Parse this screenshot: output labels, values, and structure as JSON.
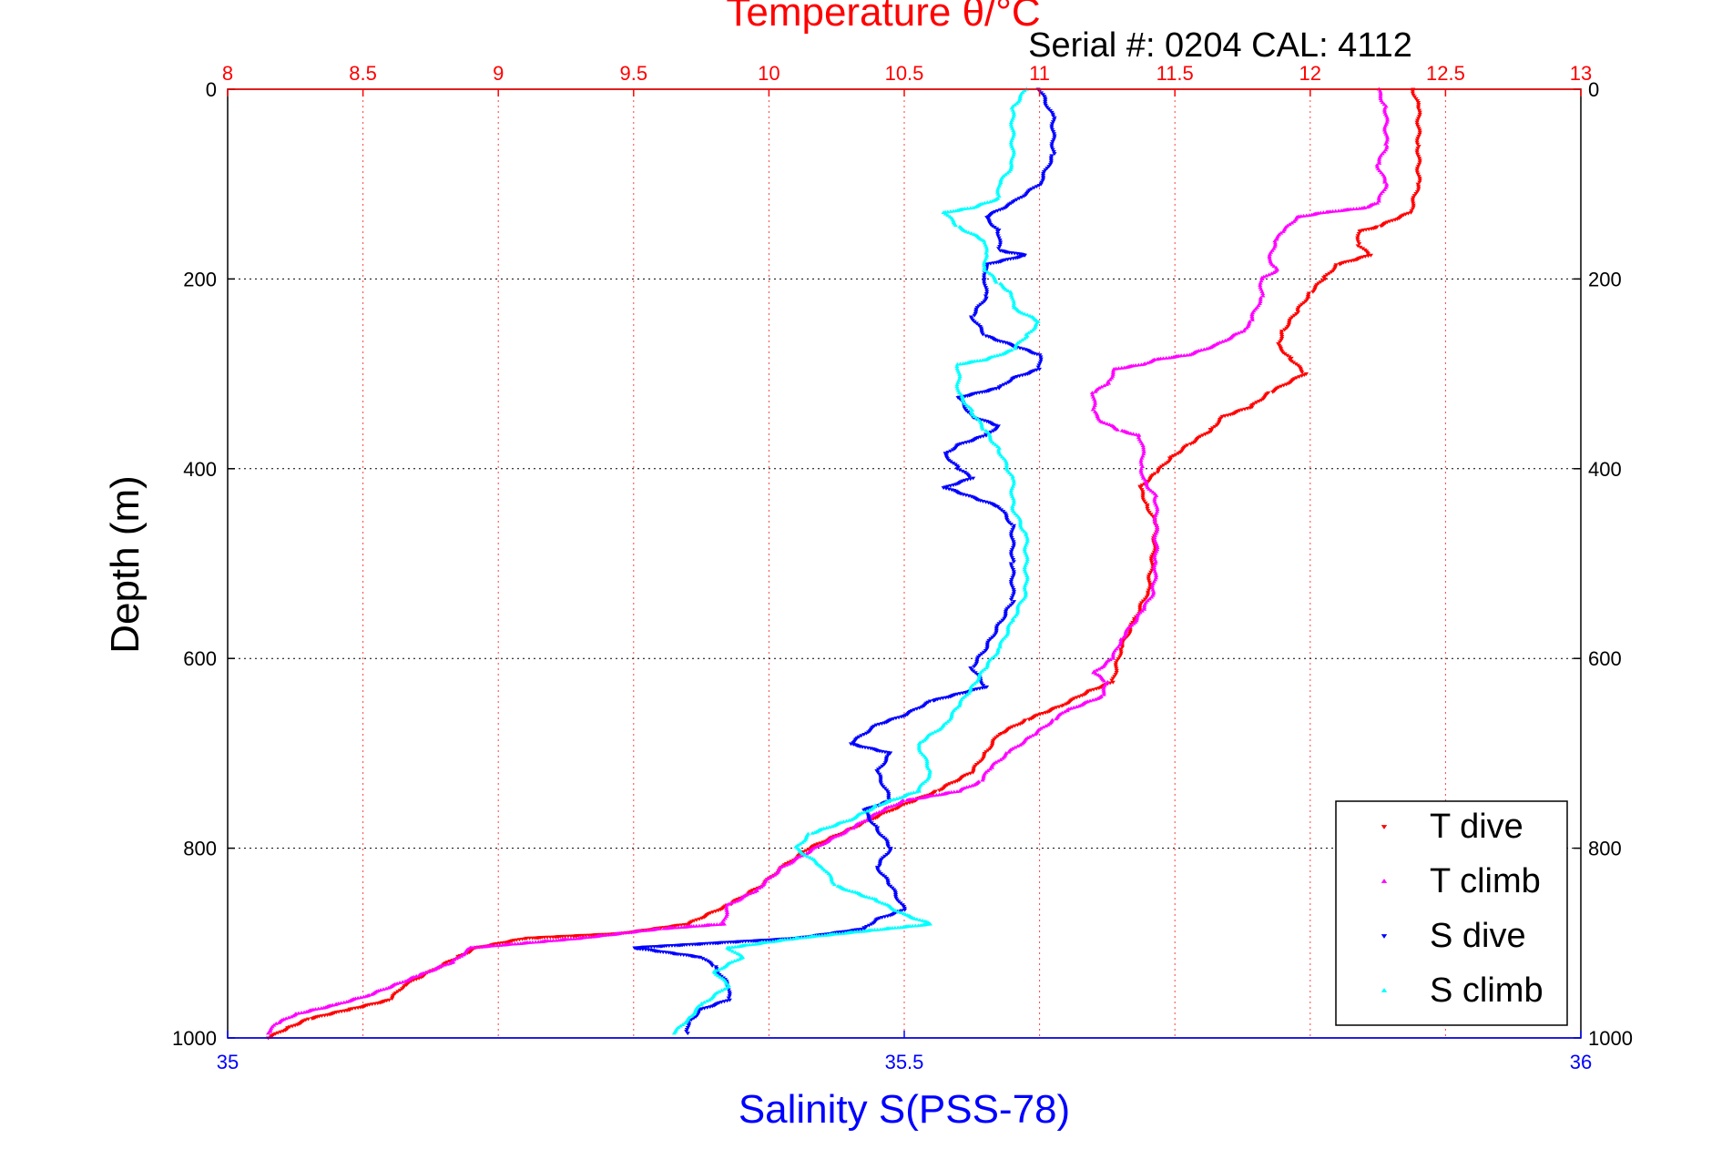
{
  "chart_data": {
    "type": "scatter",
    "title": "Temperature θ/°C",
    "subtitle": "Serial #: 0204  CAL: 4112",
    "ylabel": "Depth (m)",
    "xlabel": "Salinity S(PSS-78)",
    "top_axis": {
      "range": [
        8,
        13
      ],
      "ticks": [
        8,
        8.5,
        9,
        9.5,
        10,
        10.5,
        11,
        11.5,
        12,
        12.5,
        13
      ],
      "color": "#ff0000"
    },
    "bottom_axis": {
      "range": [
        35,
        36
      ],
      "ticks": [
        35,
        35.5,
        36
      ],
      "color": "#0000ff"
    },
    "y_axis": {
      "range": [
        0,
        1000
      ],
      "reversed": true,
      "ticks": [
        0,
        200,
        400,
        600,
        800,
        1000
      ]
    },
    "grid": true,
    "legend_position": "bottom-right",
    "series": [
      {
        "name": "T dive",
        "axis": "temperature",
        "marker": "down-triangle",
        "color": "#ff0000",
        "points": [
          [
            12.38,
            0
          ],
          [
            12.4,
            20
          ],
          [
            12.4,
            60
          ],
          [
            12.4,
            100
          ],
          [
            12.37,
            130
          ],
          [
            12.25,
            145
          ],
          [
            12.18,
            150
          ],
          [
            12.18,
            165
          ],
          [
            12.22,
            175
          ],
          [
            12.1,
            185
          ],
          [
            12.05,
            200
          ],
          [
            12.0,
            215
          ],
          [
            11.95,
            235
          ],
          [
            11.9,
            255
          ],
          [
            11.88,
            270
          ],
          [
            11.93,
            285
          ],
          [
            11.98,
            300
          ],
          [
            11.85,
            320
          ],
          [
            11.78,
            335
          ],
          [
            11.68,
            345
          ],
          [
            11.63,
            360
          ],
          [
            11.55,
            375
          ],
          [
            11.48,
            390
          ],
          [
            11.43,
            405
          ],
          [
            11.37,
            420
          ],
          [
            11.4,
            440
          ],
          [
            11.43,
            460
          ],
          [
            11.42,
            490
          ],
          [
            11.4,
            530
          ],
          [
            11.35,
            560
          ],
          [
            11.3,
            590
          ],
          [
            11.27,
            625
          ],
          [
            11.18,
            635
          ],
          [
            11.08,
            650
          ],
          [
            10.95,
            665
          ],
          [
            10.85,
            680
          ],
          [
            10.8,
            700
          ],
          [
            10.75,
            720
          ],
          [
            10.62,
            740
          ],
          [
            10.45,
            760
          ],
          [
            10.3,
            780
          ],
          [
            10.15,
            800
          ],
          [
            10.05,
            820
          ],
          [
            9.97,
            840
          ],
          [
            9.85,
            860
          ],
          [
            9.7,
            880
          ],
          [
            9.45,
            890
          ],
          [
            9.1,
            895
          ],
          [
            8.92,
            905
          ],
          [
            8.85,
            915
          ],
          [
            8.75,
            930
          ],
          [
            8.65,
            945
          ],
          [
            8.6,
            960
          ],
          [
            8.45,
            970
          ],
          [
            8.3,
            980
          ],
          [
            8.22,
            990
          ],
          [
            8.15,
            1000
          ]
        ]
      },
      {
        "name": "T climb",
        "axis": "temperature",
        "marker": "up-triangle",
        "color": "#ff00ff",
        "points": [
          [
            12.25,
            0
          ],
          [
            12.28,
            20
          ],
          [
            12.28,
            60
          ],
          [
            12.25,
            80
          ],
          [
            12.28,
            100
          ],
          [
            12.25,
            120
          ],
          [
            12.2,
            125
          ],
          [
            12.05,
            130
          ],
          [
            11.95,
            135
          ],
          [
            11.9,
            150
          ],
          [
            11.87,
            160
          ],
          [
            11.85,
            180
          ],
          [
            11.88,
            190
          ],
          [
            11.82,
            200
          ],
          [
            11.82,
            220
          ],
          [
            11.8,
            230
          ],
          [
            11.78,
            245
          ],
          [
            11.75,
            255
          ],
          [
            11.65,
            270
          ],
          [
            11.55,
            280
          ],
          [
            11.43,
            285
          ],
          [
            11.38,
            290
          ],
          [
            11.28,
            295
          ],
          [
            11.25,
            310
          ],
          [
            11.2,
            320
          ],
          [
            11.2,
            340
          ],
          [
            11.23,
            350
          ],
          [
            11.3,
            360
          ],
          [
            11.37,
            365
          ],
          [
            11.38,
            380
          ],
          [
            11.38,
            400
          ],
          [
            11.38,
            410
          ],
          [
            11.43,
            430
          ],
          [
            11.43,
            460
          ],
          [
            11.43,
            500
          ],
          [
            11.42,
            530
          ],
          [
            11.38,
            550
          ],
          [
            11.3,
            580
          ],
          [
            11.27,
            600
          ],
          [
            11.2,
            615
          ],
          [
            11.25,
            625
          ],
          [
            11.23,
            640
          ],
          [
            11.1,
            655
          ],
          [
            11.05,
            665
          ],
          [
            10.98,
            680
          ],
          [
            10.88,
            700
          ],
          [
            10.82,
            715
          ],
          [
            10.78,
            730
          ],
          [
            10.7,
            740
          ],
          [
            10.5,
            750
          ],
          [
            10.42,
            760
          ],
          [
            10.3,
            780
          ],
          [
            10.2,
            795
          ],
          [
            10.05,
            820
          ],
          [
            9.95,
            845
          ],
          [
            9.85,
            860
          ],
          [
            9.83,
            880
          ],
          [
            9.6,
            885
          ],
          [
            9.3,
            895
          ],
          [
            8.9,
            905
          ],
          [
            8.83,
            920
          ],
          [
            8.7,
            935
          ],
          [
            8.52,
            955
          ],
          [
            8.4,
            965
          ],
          [
            8.25,
            975
          ],
          [
            8.18,
            985
          ],
          [
            8.15,
            995
          ]
        ]
      },
      {
        "name": "S dive",
        "axis": "salinity",
        "marker": "down-triangle",
        "color": "#0000ff",
        "points": [
          [
            35.6,
            0
          ],
          [
            35.61,
            30
          ],
          [
            35.61,
            70
          ],
          [
            35.6,
            100
          ],
          [
            35.58,
            120
          ],
          [
            35.56,
            135
          ],
          [
            35.57,
            150
          ],
          [
            35.57,
            170
          ],
          [
            35.59,
            175
          ],
          [
            35.56,
            185
          ],
          [
            35.56,
            200
          ],
          [
            35.56,
            220
          ],
          [
            35.55,
            240
          ],
          [
            35.56,
            260
          ],
          [
            35.58,
            270
          ],
          [
            35.6,
            280
          ],
          [
            35.6,
            295
          ],
          [
            35.58,
            305
          ],
          [
            35.57,
            315
          ],
          [
            35.54,
            325
          ],
          [
            35.55,
            345
          ],
          [
            35.57,
            355
          ],
          [
            35.56,
            365
          ],
          [
            35.54,
            375
          ],
          [
            35.53,
            385
          ],
          [
            35.54,
            400
          ],
          [
            35.55,
            410
          ],
          [
            35.53,
            420
          ],
          [
            35.55,
            430
          ],
          [
            35.57,
            440
          ],
          [
            35.58,
            460
          ],
          [
            35.58,
            500
          ],
          [
            35.58,
            540
          ],
          [
            35.57,
            565
          ],
          [
            35.56,
            590
          ],
          [
            35.55,
            610
          ],
          [
            35.56,
            630
          ],
          [
            35.52,
            645
          ],
          [
            35.5,
            660
          ],
          [
            35.48,
            670
          ],
          [
            35.46,
            690
          ],
          [
            35.49,
            700
          ],
          [
            35.48,
            720
          ],
          [
            35.49,
            750
          ],
          [
            35.47,
            760
          ],
          [
            35.48,
            780
          ],
          [
            35.49,
            800
          ],
          [
            35.48,
            820
          ],
          [
            35.49,
            840
          ],
          [
            35.5,
            865
          ],
          [
            35.48,
            875
          ],
          [
            35.47,
            885
          ],
          [
            35.42,
            895
          ],
          [
            35.3,
            905
          ],
          [
            35.35,
            915
          ],
          [
            35.36,
            925
          ],
          [
            35.37,
            945
          ],
          [
            35.37,
            960
          ],
          [
            35.35,
            970
          ],
          [
            35.34,
            985
          ],
          [
            35.34,
            995
          ]
        ]
      },
      {
        "name": "S climb",
        "axis": "salinity",
        "marker": "up-triangle",
        "color": "#00ffff",
        "points": [
          [
            35.59,
            0
          ],
          [
            35.58,
            20
          ],
          [
            35.58,
            50
          ],
          [
            35.58,
            80
          ],
          [
            35.57,
            100
          ],
          [
            35.57,
            115
          ],
          [
            35.55,
            125
          ],
          [
            35.53,
            130
          ],
          [
            35.54,
            145
          ],
          [
            35.56,
            160
          ],
          [
            35.56,
            175
          ],
          [
            35.56,
            190
          ],
          [
            35.57,
            205
          ],
          [
            35.58,
            215
          ],
          [
            35.58,
            230
          ],
          [
            35.6,
            245
          ],
          [
            35.59,
            260
          ],
          [
            35.58,
            275
          ],
          [
            35.56,
            285
          ],
          [
            35.54,
            290
          ],
          [
            35.54,
            320
          ],
          [
            35.55,
            340
          ],
          [
            35.56,
            360
          ],
          [
            35.57,
            380
          ],
          [
            35.58,
            410
          ],
          [
            35.58,
            440
          ],
          [
            35.59,
            470
          ],
          [
            35.59,
            500
          ],
          [
            35.59,
            530
          ],
          [
            35.58,
            560
          ],
          [
            35.57,
            590
          ],
          [
            35.56,
            610
          ],
          [
            35.55,
            630
          ],
          [
            35.54,
            650
          ],
          [
            35.53,
            670
          ],
          [
            35.51,
            690
          ],
          [
            35.52,
            720
          ],
          [
            35.51,
            740
          ],
          [
            35.48,
            755
          ],
          [
            35.46,
            770
          ],
          [
            35.43,
            785
          ],
          [
            35.42,
            800
          ],
          [
            35.44,
            820
          ],
          [
            35.45,
            840
          ],
          [
            35.48,
            855
          ],
          [
            35.5,
            870
          ],
          [
            35.52,
            880
          ],
          [
            35.42,
            895
          ],
          [
            35.37,
            905
          ],
          [
            35.38,
            915
          ],
          [
            35.36,
            930
          ],
          [
            35.37,
            945
          ],
          [
            35.35,
            965
          ],
          [
            35.34,
            980
          ],
          [
            35.33,
            995
          ]
        ]
      }
    ]
  },
  "labels": {
    "title": "Temperature θ/°C",
    "serial": "Serial #: 0204  CAL: 4112",
    "ylabel": "Depth (m)",
    "xlabel": "Salinity S(PSS-78)",
    "legend": [
      "T dive",
      "T climb",
      "S dive",
      "S climb"
    ]
  }
}
